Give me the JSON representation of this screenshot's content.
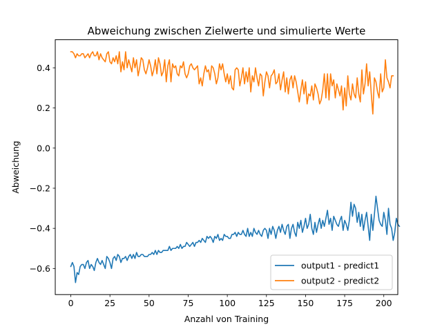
{
  "chart_data": {
    "type": "line",
    "title": "Abweichung zwischen Zielwerte und simulierte Werte",
    "xlabel": "Anzahl von Training",
    "ylabel": "Abweichung",
    "xlim": [
      -9.95,
      208.95
    ],
    "ylim": [
      -0.73,
      0.54
    ],
    "xticks": [
      0,
      25,
      50,
      75,
      100,
      125,
      150,
      175,
      200
    ],
    "yticks": [
      -0.6,
      -0.4,
      -0.2,
      0.0,
      0.2,
      0.4
    ],
    "ytick_labels": [
      "−0.6",
      "−0.4",
      "−0.2",
      "0.0",
      "0.2",
      "0.4"
    ],
    "grid": false,
    "legend_position": "lower-right",
    "series": [
      {
        "name": "output1 - predict1",
        "color": "#1f77b4",
        "x_start": 0,
        "x_step": 1,
        "values": [
          -0.59,
          -0.57,
          -0.59,
          -0.67,
          -0.62,
          -0.63,
          -0.59,
          -0.58,
          -0.58,
          -0.6,
          -0.57,
          -0.56,
          -0.6,
          -0.58,
          -0.59,
          -0.61,
          -0.57,
          -0.55,
          -0.57,
          -0.58,
          -0.56,
          -0.58,
          -0.6,
          -0.54,
          -0.55,
          -0.57,
          -0.6,
          -0.55,
          -0.54,
          -0.56,
          -0.53,
          -0.54,
          -0.57,
          -0.55,
          -0.55,
          -0.54,
          -0.56,
          -0.54,
          -0.53,
          -0.55,
          -0.53,
          -0.55,
          -0.52,
          -0.54,
          -0.54,
          -0.53,
          -0.53,
          -0.54,
          -0.54,
          -0.54,
          -0.53,
          -0.53,
          -0.52,
          -0.53,
          -0.51,
          -0.53,
          -0.51,
          -0.52,
          -0.52,
          -0.51,
          -0.51,
          -0.51,
          -0.51,
          -0.49,
          -0.51,
          -0.5,
          -0.5,
          -0.5,
          -0.49,
          -0.5,
          -0.48,
          -0.5,
          -0.49,
          -0.49,
          -0.47,
          -0.48,
          -0.49,
          -0.48,
          -0.47,
          -0.49,
          -0.47,
          -0.47,
          -0.46,
          -0.47,
          -0.45,
          -0.46,
          -0.47,
          -0.44,
          -0.45,
          -0.44,
          -0.45,
          -0.47,
          -0.44,
          -0.45,
          -0.43,
          -0.46,
          -0.45,
          -0.46,
          -0.43,
          -0.44,
          -0.44,
          -0.45,
          -0.45,
          -0.43,
          -0.43,
          -0.42,
          -0.44,
          -0.42,
          -0.43,
          -0.43,
          -0.41,
          -0.43,
          -0.44,
          -0.4,
          -0.44,
          -0.42,
          -0.44,
          -0.4,
          -0.42,
          -0.43,
          -0.41,
          -0.43,
          -0.44,
          -0.41,
          -0.4,
          -0.41,
          -0.45,
          -0.4,
          -0.43,
          -0.39,
          -0.41,
          -0.45,
          -0.41,
          -0.39,
          -0.42,
          -0.38,
          -0.41,
          -0.43,
          -0.39,
          -0.38,
          -0.45,
          -0.4,
          -0.38,
          -0.42,
          -0.44,
          -0.37,
          -0.4,
          -0.36,
          -0.42,
          -0.39,
          -0.35,
          -0.4,
          -0.38,
          -0.33,
          -0.4,
          -0.43,
          -0.37,
          -0.42,
          -0.38,
          -0.35,
          -0.4,
          -0.36,
          -0.39,
          -0.35,
          -0.31,
          -0.38,
          -0.35,
          -0.41,
          -0.34,
          -0.36,
          -0.38,
          -0.39,
          -0.36,
          -0.34,
          -0.41,
          -0.36,
          -0.38,
          -0.41,
          -0.36,
          -0.27,
          -0.34,
          -0.28,
          -0.3,
          -0.37,
          -0.32,
          -0.39,
          -0.33,
          -0.41,
          -0.36,
          -0.32,
          -0.39,
          -0.46,
          -0.33,
          -0.41,
          -0.33,
          -0.24,
          -0.3,
          -0.36,
          -0.38,
          -0.39,
          -0.32,
          -0.36,
          -0.43,
          -0.3,
          -0.38,
          -0.4,
          -0.46,
          -0.42,
          -0.35,
          -0.38,
          -0.39
        ]
      },
      {
        "name": "output2 - predict2",
        "color": "#ff7f0e",
        "x_start": 0,
        "x_step": 1,
        "values": [
          0.48,
          0.48,
          0.47,
          0.45,
          0.47,
          0.46,
          0.46,
          0.47,
          0.47,
          0.45,
          0.46,
          0.47,
          0.45,
          0.47,
          0.48,
          0.46,
          0.46,
          0.48,
          0.44,
          0.47,
          0.45,
          0.44,
          0.43,
          0.47,
          0.48,
          0.43,
          0.42,
          0.45,
          0.43,
          0.46,
          0.42,
          0.48,
          0.38,
          0.43,
          0.39,
          0.48,
          0.4,
          0.44,
          0.41,
          0.38,
          0.45,
          0.4,
          0.44,
          0.36,
          0.4,
          0.45,
          0.44,
          0.39,
          0.37,
          0.4,
          0.44,
          0.41,
          0.36,
          0.39,
          0.44,
          0.37,
          0.45,
          0.42,
          0.36,
          0.38,
          0.44,
          0.33,
          0.41,
          0.44,
          0.33,
          0.42,
          0.4,
          0.41,
          0.37,
          0.36,
          0.41,
          0.4,
          0.43,
          0.37,
          0.35,
          0.37,
          0.41,
          0.42,
          0.4,
          0.39,
          0.4,
          0.41,
          0.32,
          0.35,
          0.31,
          0.37,
          0.41,
          0.38,
          0.39,
          0.34,
          0.41,
          0.4,
          0.37,
          0.32,
          0.35,
          0.42,
          0.39,
          0.42,
          0.37,
          0.33,
          0.37,
          0.32,
          0.36,
          0.3,
          0.29,
          0.39,
          0.4,
          0.39,
          0.31,
          0.35,
          0.4,
          0.32,
          0.38,
          0.33,
          0.4,
          0.28,
          0.36,
          0.33,
          0.4,
          0.35,
          0.31,
          0.37,
          0.36,
          0.26,
          0.33,
          0.38,
          0.36,
          0.3,
          0.36,
          0.37,
          0.39,
          0.32,
          0.33,
          0.37,
          0.29,
          0.34,
          0.38,
          0.28,
          0.35,
          0.27,
          0.34,
          0.36,
          0.3,
          0.36,
          0.33,
          0.28,
          0.23,
          0.29,
          0.34,
          0.27,
          0.33,
          0.22,
          0.27,
          0.26,
          0.31,
          0.24,
          0.32,
          0.3,
          0.27,
          0.22,
          0.24,
          0.29,
          0.37,
          0.25,
          0.37,
          0.24,
          0.37,
          0.31,
          0.34,
          0.25,
          0.32,
          0.29,
          0.26,
          0.31,
          0.19,
          0.3,
          0.21,
          0.36,
          0.27,
          0.24,
          0.32,
          0.27,
          0.25,
          0.35,
          0.27,
          0.23,
          0.39,
          0.27,
          0.32,
          0.42,
          0.31,
          0.38,
          0.27,
          0.17,
          0.35,
          0.33,
          0.28,
          0.25,
          0.37,
          0.28,
          0.3,
          0.44,
          0.35,
          0.33,
          0.3,
          0.36,
          0.36
        ]
      }
    ]
  }
}
